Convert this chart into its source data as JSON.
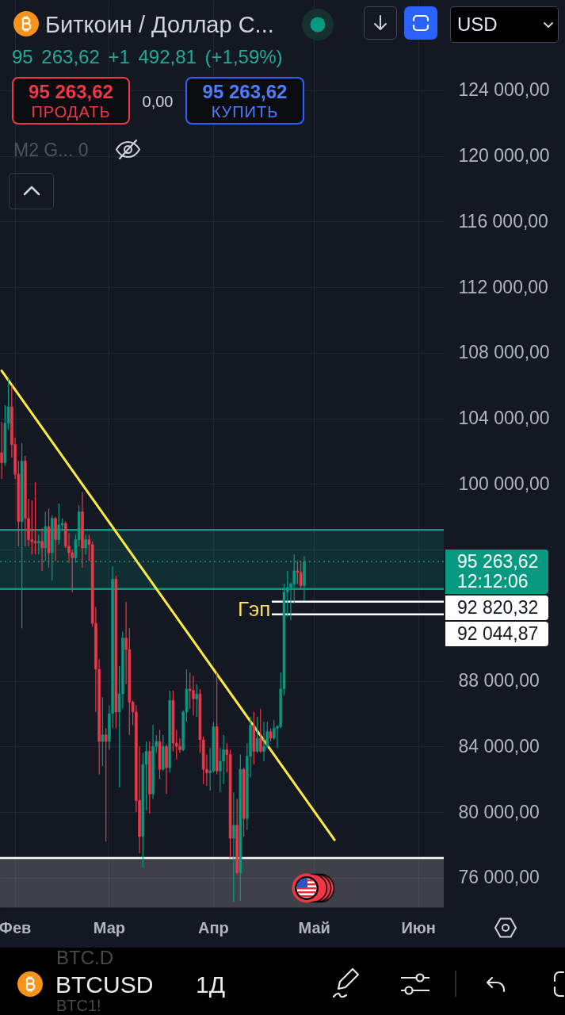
{
  "chart_data": {
    "type": "candlestick",
    "title": "Биткоин / Доллар С...",
    "subtitle": "95 263,62 +1 492,81 (+1,59%)",
    "categories": [
      null,
      null,
      null,
      null,
      "Фев",
      null,
      null,
      null,
      null,
      null,
      null,
      null,
      null,
      null,
      null,
      null,
      null,
      null,
      null,
      null,
      null,
      null,
      null,
      null,
      null,
      null,
      null,
      null,
      null,
      null,
      null,
      null,
      "Мар",
      null,
      null,
      null,
      null,
      null,
      null,
      null,
      null,
      null,
      null,
      null,
      null,
      null,
      null,
      null,
      null,
      null,
      null,
      null,
      null,
      null,
      null,
      null,
      null,
      null,
      null,
      null,
      null,
      null,
      null,
      "Апр",
      null,
      null,
      null,
      null,
      null,
      null,
      null,
      null,
      null,
      null,
      null,
      null,
      null,
      null,
      null,
      null,
      null,
      null,
      null,
      null,
      null,
      null,
      null,
      null,
      null,
      null,
      null,
      null,
      null,
      "Май",
      null,
      null,
      null,
      null,
      null,
      null,
      null,
      null,
      null,
      null,
      null,
      null,
      null,
      null,
      null,
      null,
      null,
      null,
      null,
      null,
      null,
      null,
      null,
      null,
      null,
      null,
      null,
      null,
      null,
      null,
      "Июн",
      null,
      null,
      null,
      null,
      null,
      null,
      null
    ],
    "ohlc": [
      [
        101900,
        103800,
        100300,
        101300
      ],
      [
        101300,
        104800,
        101100,
        103700
      ],
      [
        103700,
        106400,
        103300,
        104700
      ],
      [
        104700,
        106000,
        101600,
        102400
      ],
      [
        102400,
        102800,
        100300,
        100600
      ],
      [
        100600,
        101400,
        96200,
        97700
      ],
      [
        97700,
        102500,
        91200,
        101400
      ],
      [
        101400,
        101700,
        96200,
        97900
      ],
      [
        97900,
        99100,
        96200,
        96600
      ],
      [
        96600,
        99000,
        95700,
        96500
      ],
      [
        96500,
        100100,
        95700,
        96400
      ],
      [
        96400,
        96900,
        95700,
        96500
      ],
      [
        96500,
        97300,
        94700,
        96100
      ],
      [
        96100,
        98300,
        95300,
        97400
      ],
      [
        97400,
        98500,
        94900,
        95800
      ],
      [
        95800,
        98100,
        94100,
        97900
      ],
      [
        97900,
        98000,
        95300,
        96600
      ],
      [
        96600,
        98800,
        96300,
        97500
      ],
      [
        97500,
        97900,
        97200,
        97600
      ],
      [
        97600,
        97700,
        96100,
        96200
      ],
      [
        96200,
        97000,
        95200,
        95800
      ],
      [
        95800,
        96000,
        93400,
        95500
      ],
      [
        95500,
        96900,
        95200,
        96600
      ],
      [
        96600,
        98700,
        96200,
        98300
      ],
      [
        98300,
        99500,
        94900,
        96100
      ],
      [
        96100,
        96900,
        95700,
        96600
      ],
      [
        96600,
        96900,
        95300,
        96300
      ],
      [
        96300,
        96500,
        91300,
        91500
      ],
      [
        91500,
        92500,
        86100,
        88700
      ],
      [
        88700,
        89300,
        82300,
        84300
      ],
      [
        84300,
        87000,
        82800,
        84700
      ],
      [
        84700,
        85100,
        78200,
        84300
      ],
      [
        84300,
        86500,
        83800,
        86000
      ],
      [
        86000,
        95000,
        85100,
        94200
      ],
      [
        94200,
        94400,
        85100,
        86100
      ],
      [
        86100,
        88900,
        81500,
        87200
      ],
      [
        87200,
        91000,
        86300,
        90600
      ],
      [
        90600,
        92800,
        87800,
        89900
      ],
      [
        89900,
        91200,
        84700,
        86700
      ],
      [
        86700,
        86800,
        85300,
        86100
      ],
      [
        86100,
        86500,
        80000,
        80700
      ],
      [
        80700,
        84000,
        77500,
        78500
      ],
      [
        78500,
        83600,
        76600,
        82900
      ],
      [
        82900,
        84300,
        80100,
        83700
      ],
      [
        83700,
        84300,
        79900,
        81100
      ],
      [
        81100,
        85300,
        80800,
        84000
      ],
      [
        84000,
        84700,
        83600,
        84300
      ],
      [
        84300,
        85000,
        82000,
        82600
      ],
      [
        82600,
        84700,
        82500,
        84000
      ],
      [
        84000,
        84100,
        81100,
        82700
      ],
      [
        82700,
        87400,
        82400,
        86800
      ],
      [
        86800,
        87400,
        83700,
        84200
      ],
      [
        84200,
        85000,
        83200,
        84000
      ],
      [
        84000,
        84500,
        83600,
        83800
      ],
      [
        83800,
        86200,
        83700,
        86100
      ],
      [
        86100,
        88700,
        85500,
        87500
      ],
      [
        87500,
        88500,
        86300,
        87400
      ],
      [
        87400,
        88300,
        85900,
        86900
      ],
      [
        86900,
        87800,
        85800,
        87200
      ],
      [
        87200,
        87500,
        83600,
        84400
      ],
      [
        84400,
        84600,
        81700,
        82600
      ],
      [
        82600,
        83500,
        81600,
        82400
      ],
      [
        82400,
        83900,
        81300,
        82500
      ],
      [
        82500,
        85500,
        82400,
        85200
      ],
      [
        85200,
        88500,
        82300,
        82500
      ],
      [
        82500,
        83900,
        81200,
        83100
      ],
      [
        83100,
        84700,
        81700,
        83800
      ],
      [
        83800,
        84200,
        82400,
        83500
      ],
      [
        83500,
        83800,
        77200,
        78400
      ],
      [
        78400,
        81200,
        74500,
        79200
      ],
      [
        79200,
        80800,
        76200,
        76300
      ],
      [
        76300,
        83500,
        74600,
        82600
      ],
      [
        82600,
        82700,
        78500,
        79600
      ],
      [
        79600,
        84200,
        78900,
        83400
      ],
      [
        83400,
        85800,
        82100,
        85300
      ],
      [
        85300,
        86100,
        82900,
        83700
      ],
      [
        83700,
        85800,
        83600,
        84500
      ],
      [
        84500,
        86300,
        83600,
        83700
      ],
      [
        83700,
        85500,
        83100,
        84000
      ],
      [
        84000,
        85500,
        83900,
        84900
      ],
      [
        84900,
        85100,
        84300,
        84500
      ],
      [
        84500,
        85600,
        84400,
        85100
      ],
      [
        85100,
        85300,
        83900,
        85200
      ],
      [
        85200,
        88500,
        85100,
        87500
      ],
      [
        87500,
        93900,
        87100,
        93400
      ],
      [
        93400,
        94700,
        91900,
        93700
      ],
      [
        93700,
        94000,
        91700,
        93900
      ],
      [
        93900,
        95700,
        92700,
        94700
      ],
      [
        94700,
        95300,
        93900,
        94600
      ],
      [
        94600,
        95300,
        93600,
        93800
      ],
      [
        93800,
        95600,
        92900,
        95263.62
      ],
      null,
      null,
      null,
      null,
      null,
      null,
      null,
      null,
      null,
      null,
      null,
      null,
      null,
      null,
      null,
      null,
      null,
      null,
      null,
      null,
      null,
      null,
      null,
      null,
      null,
      null,
      null,
      null,
      null,
      null,
      null,
      null,
      null,
      null,
      null,
      null,
      null,
      null,
      null,
      null,
      null
    ],
    "colors": [
      "#f23645",
      "#089981",
      "#089981",
      "#f23645",
      "#f23645",
      "#f23645",
      "#089981",
      "#f23645",
      "#f23645",
      "#f23645",
      "#f23645",
      "#089981",
      "#f23645",
      "#089981",
      "#f23645",
      "#089981",
      "#f23645",
      "#089981",
      "#089981",
      "#f23645",
      "#f23645",
      "#f23645",
      "#089981",
      "#089981",
      "#f23645",
      "#089981",
      "#f23645",
      "#f23645",
      "#f23645",
      "#f23645",
      "#089981",
      "#f23645",
      "#089981",
      "#089981",
      "#f23645",
      "#089981",
      "#089981",
      "#f23645",
      "#f23645",
      "#f23645",
      "#f23645",
      "#f23645",
      "#089981",
      "#089981",
      "#f23645",
      "#089981",
      "#089981",
      "#f23645",
      "#089981",
      "#f23645",
      "#089981",
      "#f23645",
      "#f23645",
      "#f23645",
      "#089981",
      "#089981",
      "#f23645",
      "#f23645",
      "#089981",
      "#f23645",
      "#f23645",
      "#f23645",
      "#089981",
      "#089981",
      "#f23645",
      "#089981",
      "#089981",
      "#f23645",
      "#f23645",
      "#089981",
      "#f23645",
      "#089981",
      "#f23645",
      "#089981",
      "#089981",
      "#f23645",
      "#089981",
      "#f23645",
      "#089981",
      "#089981",
      "#f23645",
      "#089981",
      "#089981",
      "#089981",
      "#089981",
      "#089981",
      "#089981",
      "#089981",
      "#f23645",
      "#f23645",
      "#089981",
      null,
      null,
      null,
      null,
      null,
      null,
      null,
      null,
      null,
      null,
      null,
      null,
      null,
      null,
      null,
      null,
      null,
      null,
      null,
      null,
      null,
      null,
      null,
      null,
      null,
      null,
      null,
      null,
      null,
      null,
      null,
      null,
      null,
      null,
      null,
      null,
      null,
      null,
      null,
      null,
      null
    ],
    "series": [
      {
        "type": "line",
        "color": "#ffeb3b",
        "values": [
          106900,
          null,
          null,
          null,
          null,
          null,
          null,
          null,
          null,
          null,
          null,
          null,
          null,
          null,
          null,
          null,
          null,
          null,
          null,
          null,
          null,
          null,
          null,
          null,
          null,
          null,
          null,
          null,
          null,
          null,
          null,
          null,
          null,
          null,
          null,
          null,
          null,
          null,
          null,
          null,
          null,
          null,
          null,
          null,
          null,
          null,
          null,
          null,
          null,
          null,
          null,
          null,
          null,
          null,
          null,
          null,
          null,
          null,
          null,
          null,
          null,
          null,
          null,
          null,
          null,
          null,
          null,
          null,
          null,
          null,
          null,
          null,
          null,
          null,
          null,
          null,
          null,
          null,
          null,
          null,
          null,
          null,
          null,
          null,
          null,
          null,
          null,
          null,
          null,
          null,
          null,
          null,
          null,
          null,
          null,
          null,
          null,
          null,
          null,
          78300,
          null,
          null,
          null,
          null,
          null,
          null,
          null,
          null,
          null,
          null,
          null,
          null,
          null,
          null,
          null,
          null,
          null,
          null,
          null,
          null,
          null,
          null,
          null,
          null,
          null,
          null,
          null,
          null,
          null,
          null,
          null,
          null
        ]
      }
    ],
    "ylim": [
      74200,
      129500
    ],
    "yticks": [
      {
        "value": 76000,
        "label": "76 000,00"
      },
      {
        "value": 80000,
        "label": "80 000,00"
      },
      {
        "value": 84000,
        "label": "84 000,00"
      },
      {
        "value": 88000,
        "label": "88 000,00"
      },
      {
        "value": 96000,
        "label": null
      },
      {
        "value": 100000,
        "label": "100 000,00"
      },
      {
        "value": 104000,
        "label": "104 000,00"
      },
      {
        "value": 108000,
        "label": "108 000,00"
      },
      {
        "value": 112000,
        "label": "112 000,00"
      },
      {
        "value": 116000,
        "label": "116 000,00"
      },
      {
        "value": 120000,
        "label": "120 000,00"
      },
      {
        "value": 124000,
        "label": "124 000,00"
      }
    ],
    "grid": true,
    "bands": [
      {
        "axis": "y",
        "from": 93600,
        "to": 97200,
        "color": "#089981"
      },
      {
        "axis": "y",
        "from": 74200,
        "to": 77200,
        "color": "#ffffff"
      }
    ],
    "ref_lines": [
      {
        "axis": "y",
        "value": 95263.62,
        "label": "95 263,62\n12:12:06",
        "color": "#089981",
        "line_style": "dotted"
      },
      {
        "axis": "y",
        "value": 92820.32,
        "label": "92 820,32",
        "color": "#ffffff"
      },
      {
        "axis": "y",
        "value": 92044.87,
        "label": "92 044,87",
        "color": "#ffffff"
      }
    ],
    "annotations": [
      "95 263,62",
      "ПРОДАТЬ",
      "0,00",
      "95 263,62",
      "КУПИТЬ",
      "M2 G... 0",
      "USD",
      "Гэп",
      "BTC.D",
      "BTCUSD",
      "1Д",
      "BTC1!"
    ]
  }
}
